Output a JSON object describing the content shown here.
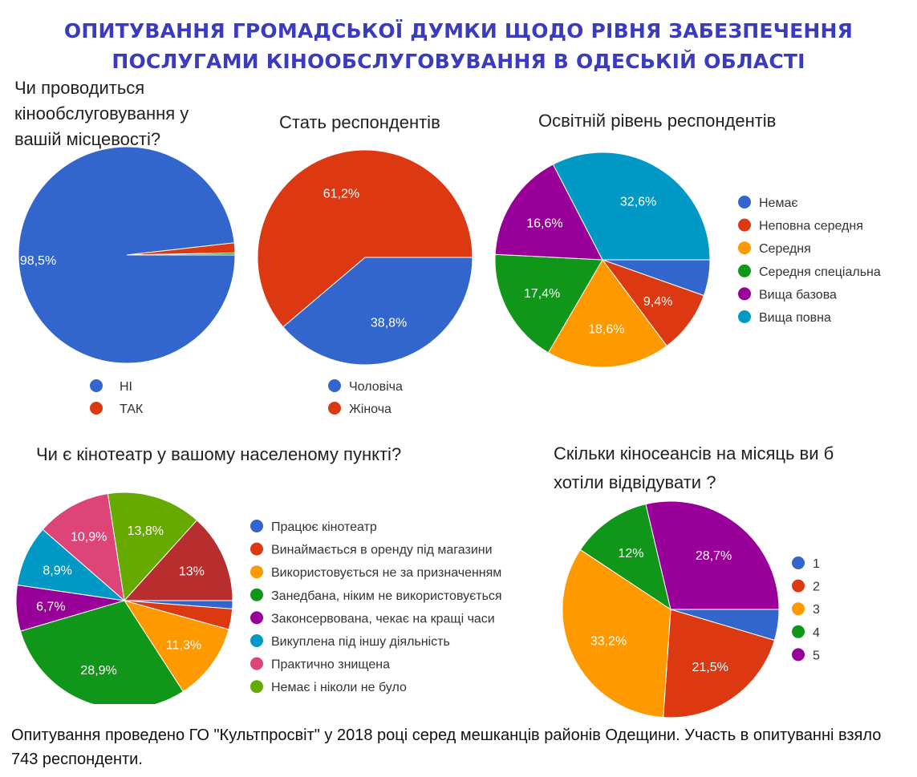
{
  "title": {
    "line1": "ОПИТУВАННЯ ГРОМАДСЬКОЇ ДУМКИ ЩОДО РІВНЯ ЗАБЕЗПЕЧЕННЯ",
    "line2": "ПОСЛУГАМИ КІНООБСЛУГОВУВАННЯ В ОДЕСЬКІЙ ОБЛАСТІ",
    "color": "#3a3bbd"
  },
  "footer": "Опитування проведено ГО \"Культпросвіт\" у 2018 році серед мешканців районів Одещини. Участь в опитуванні взяло 743 респонденти.",
  "chart_data": [
    {
      "type": "pie",
      "title_lines": [
        "Чи проводиться",
        "кінообслуговування у",
        "вашій місцевості?"
      ],
      "categories": [
        "НІ",
        "ТАК"
      ],
      "values": [
        98.5,
        1.5
      ],
      "colors": [
        "#3366cc",
        "#dc3912"
      ],
      "data_labels": [
        "98,5%",
        ""
      ],
      "extra_slice": {
        "value": 0.3,
        "color": "#109618"
      },
      "legend": "bottom"
    },
    {
      "type": "pie",
      "title_lines": [
        "Стать респондентів"
      ],
      "categories": [
        "Чоловіча",
        "Жіноча"
      ],
      "values": [
        38.8,
        61.2
      ],
      "colors": [
        "#3366cc",
        "#dc3912"
      ],
      "data_labels": [
        "38,8%",
        "61,2%"
      ],
      "legend": "bottom"
    },
    {
      "type": "pie",
      "title_lines": [
        "Освітній рівень респондентів"
      ],
      "categories": [
        "Немає",
        "Неповна середня",
        "Середня",
        "Середня спеціальна",
        "Вища базова",
        "Вища повна"
      ],
      "values": [
        5.4,
        9.4,
        18.6,
        17.4,
        16.6,
        32.6
      ],
      "colors": [
        "#3366cc",
        "#dc3912",
        "#ff9900",
        "#109618",
        "#990099",
        "#0099c6"
      ],
      "data_labels": [
        "",
        "9,4%",
        "18,6%",
        "17,4%",
        "16,6%",
        "32,6%"
      ],
      "legend": "right"
    },
    {
      "type": "pie",
      "title_lines": [
        "Чи є кінотеатр у вашому населеному пункті?"
      ],
      "categories": [
        "Працює кінотеатр",
        "Винаймається в оренду під магазини",
        "Використовується не за призначенням",
        "Занедбана, ніким не використовується",
        "Законсервована, чекає на кращі часи",
        "Викуплена під іншу діяльність",
        "Практично знищена",
        "Немає і ніколи не було"
      ],
      "values": [
        1.2,
        3.0,
        11.3,
        28.9,
        6.7,
        8.9,
        10.9,
        13.8
      ],
      "colors": [
        "#3366cc",
        "#dc3912",
        "#ff9900",
        "#109618",
        "#990099",
        "#0099c6",
        "#dd4477",
        "#66aa00"
      ],
      "data_labels": [
        "",
        "",
        "11,3%",
        "28,9%",
        "6,7%",
        "8,9%",
        "10,9%",
        "13,8%"
      ],
      "extra_slice": {
        "value": 13.0,
        "color": "#b82e2e",
        "label": "13%"
      },
      "legend": "right"
    },
    {
      "type": "pie",
      "title_lines": [
        "Скільки кіносеансів на місяць ви б",
        "хотіли відвідувати ?"
      ],
      "categories": [
        "1",
        "2",
        "3",
        "4",
        "5"
      ],
      "values": [
        4.6,
        21.5,
        33.2,
        12.0,
        28.7
      ],
      "colors": [
        "#3366cc",
        "#dc3912",
        "#ff9900",
        "#109618",
        "#990099"
      ],
      "data_labels": [
        "",
        "21,5%",
        "33,2%",
        "12%",
        "28,7%"
      ],
      "legend": "right"
    }
  ]
}
